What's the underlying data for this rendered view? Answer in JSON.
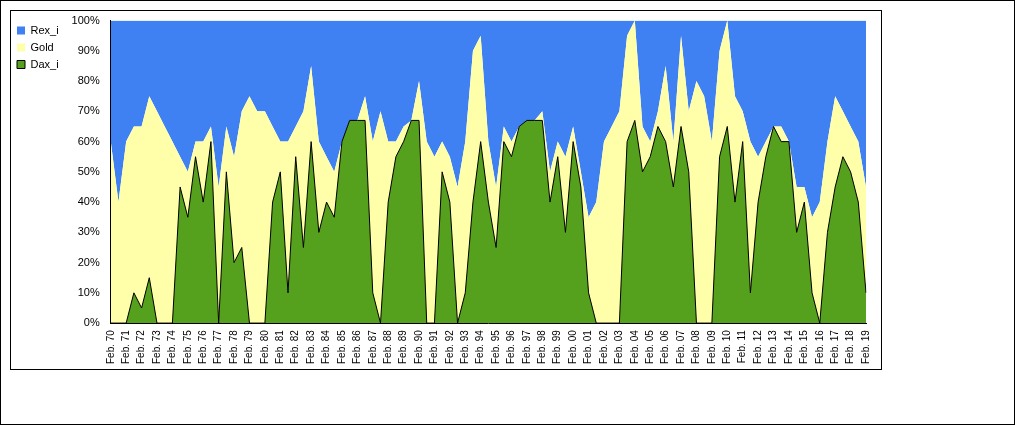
{
  "chart_data": {
    "type": "area",
    "stacked": true,
    "grid": false,
    "legend": "top-left",
    "categories": [
      "Feb. 70",
      null,
      "Feb. 71",
      null,
      "Feb. 72",
      null,
      "Feb. 73",
      null,
      "Feb. 74",
      null,
      "Feb. 75",
      null,
      "Feb. 76",
      null,
      "Feb. 77",
      null,
      "Feb. 78",
      null,
      "Feb. 79",
      null,
      "Feb. 80",
      null,
      "Feb. 81",
      null,
      "Feb. 82",
      null,
      "Feb. 83",
      null,
      "Feb. 84",
      null,
      "Feb. 85",
      null,
      "Feb. 86",
      null,
      "Feb. 87",
      null,
      "Feb. 88",
      null,
      "Feb. 89",
      null,
      "Feb. 90",
      null,
      "Feb. 91",
      null,
      "Feb. 92",
      null,
      "Feb. 93",
      null,
      "Feb. 94",
      null,
      "Feb. 95",
      null,
      "Feb. 96",
      null,
      "Feb. 97",
      null,
      "Feb. 98",
      null,
      "Feb. 99",
      null,
      "Feb. 00",
      null,
      "Feb. 01",
      null,
      "Feb. 02",
      null,
      "Feb. 03",
      null,
      "Feb. 04",
      null,
      "Feb. 05",
      null,
      "Feb. 06",
      null,
      "Feb. 07",
      null,
      "Feb. 08",
      null,
      "Feb. 09",
      null,
      "Feb. 10",
      null,
      "Feb. 11",
      null,
      "Feb. 12",
      null,
      "Feb. 13",
      null,
      "Feb. 14",
      null,
      "Feb. 15",
      null,
      "Feb. 16",
      null,
      "Feb. 17",
      null,
      "Feb. 18",
      null,
      "Feb. 19"
    ],
    "series": [
      {
        "name": "Dax_i",
        "color": "#55a01c",
        "values": [
          0,
          0,
          0,
          10,
          5,
          15,
          0,
          0,
          0,
          45,
          35,
          55,
          40,
          60,
          0,
          50,
          20,
          25,
          0,
          0,
          0,
          40,
          50,
          10,
          55,
          25,
          60,
          30,
          40,
          35,
          60,
          67,
          67,
          67,
          10,
          0,
          40,
          55,
          60,
          67,
          67,
          0,
          0,
          50,
          40,
          0,
          10,
          40,
          60,
          40,
          25,
          60,
          55,
          65,
          67,
          67,
          67,
          40,
          55,
          30,
          60,
          45,
          10,
          0,
          0,
          0,
          0,
          60,
          67,
          50,
          55,
          65,
          60,
          45,
          65,
          50,
          0,
          0,
          0,
          55,
          65,
          40,
          60,
          10,
          40,
          55,
          65,
          60,
          60,
          30,
          40,
          10,
          0,
          30,
          45,
          55,
          50,
          40,
          10
        ]
      },
      {
        "name": "Gold",
        "color": "#ffffaa",
        "values": [
          60,
          40,
          60,
          55,
          60,
          60,
          70,
          65,
          60,
          10,
          15,
          5,
          20,
          5,
          45,
          15,
          35,
          45,
          75,
          70,
          70,
          25,
          10,
          50,
          10,
          45,
          25,
          30,
          15,
          15,
          0,
          0,
          0,
          8,
          50,
          70,
          20,
          5,
          5,
          0,
          13,
          60,
          55,
          10,
          15,
          45,
          50,
          50,
          35,
          20,
          20,
          5,
          5,
          0,
          0,
          0,
          3,
          10,
          5,
          25,
          5,
          5,
          25,
          40,
          60,
          65,
          70,
          35,
          33,
          15,
          5,
          5,
          25,
          15,
          30,
          20,
          80,
          75,
          60,
          35,
          35,
          35,
          10,
          50,
          15,
          5,
          0,
          5,
          0,
          15,
          5,
          25,
          40,
          30,
          30,
          15,
          15,
          20,
          35
        ]
      },
      {
        "name": "Rex_i",
        "color": "#3f80f2",
        "values": [
          40,
          60,
          40,
          35,
          35,
          25,
          30,
          35,
          40,
          45,
          50,
          40,
          40,
          35,
          55,
          35,
          45,
          30,
          25,
          30,
          30,
          35,
          40,
          40,
          35,
          30,
          15,
          40,
          45,
          50,
          40,
          33,
          33,
          25,
          40,
          30,
          40,
          40,
          35,
          33,
          20,
          40,
          45,
          40,
          45,
          55,
          40,
          10,
          5,
          40,
          55,
          35,
          40,
          35,
          33,
          33,
          30,
          50,
          40,
          45,
          35,
          50,
          65,
          60,
          40,
          35,
          30,
          5,
          0,
          35,
          40,
          30,
          15,
          40,
          5,
          30,
          20,
          25,
          40,
          10,
          0,
          25,
          30,
          40,
          45,
          40,
          35,
          35,
          40,
          55,
          55,
          65,
          60,
          40,
          25,
          30,
          35,
          40,
          55
        ]
      }
    ],
    "ylim": [
      0,
      100
    ],
    "yticks": [
      {
        "value": 0,
        "label": "0%"
      },
      {
        "value": 10,
        "label": "10%"
      },
      {
        "value": 20,
        "label": "20%"
      },
      {
        "value": 30,
        "label": "30%"
      },
      {
        "value": 40,
        "label": "40%"
      },
      {
        "value": 50,
        "label": "50%"
      },
      {
        "value": 60,
        "label": "60%"
      },
      {
        "value": 70,
        "label": "70%"
      },
      {
        "value": 80,
        "label": "80%"
      },
      {
        "value": 90,
        "label": "90%"
      },
      {
        "value": 100,
        "label": "100%"
      }
    ]
  }
}
